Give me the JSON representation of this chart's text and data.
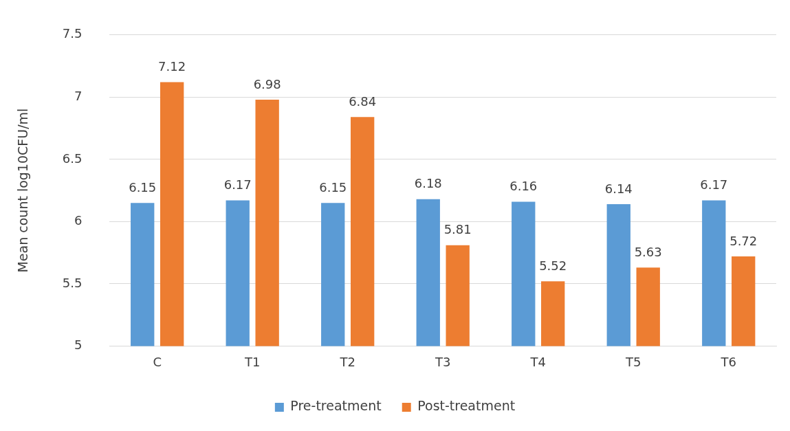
{
  "chart_data": {
    "type": "bar",
    "ylabel": "Mean count log10CFU/ml",
    "categories": [
      "C",
      "T1",
      "T2",
      "T3",
      "T4",
      "T5",
      "T6"
    ],
    "series": [
      {
        "name": "Pre-treatment",
        "color": "#5b9bd5",
        "values": [
          6.15,
          6.17,
          6.15,
          6.18,
          6.16,
          6.14,
          6.17
        ]
      },
      {
        "name": "Post-treatment",
        "color": "#ed7d31",
        "values": [
          7.12,
          6.98,
          6.84,
          5.81,
          5.52,
          5.63,
          5.72
        ]
      }
    ],
    "ylim": [
      5,
      7.5
    ],
    "yticks": [
      5,
      5.5,
      6,
      6.5,
      7,
      7.5
    ],
    "grid": "y",
    "legend": "bottom",
    "data_labels": true
  }
}
